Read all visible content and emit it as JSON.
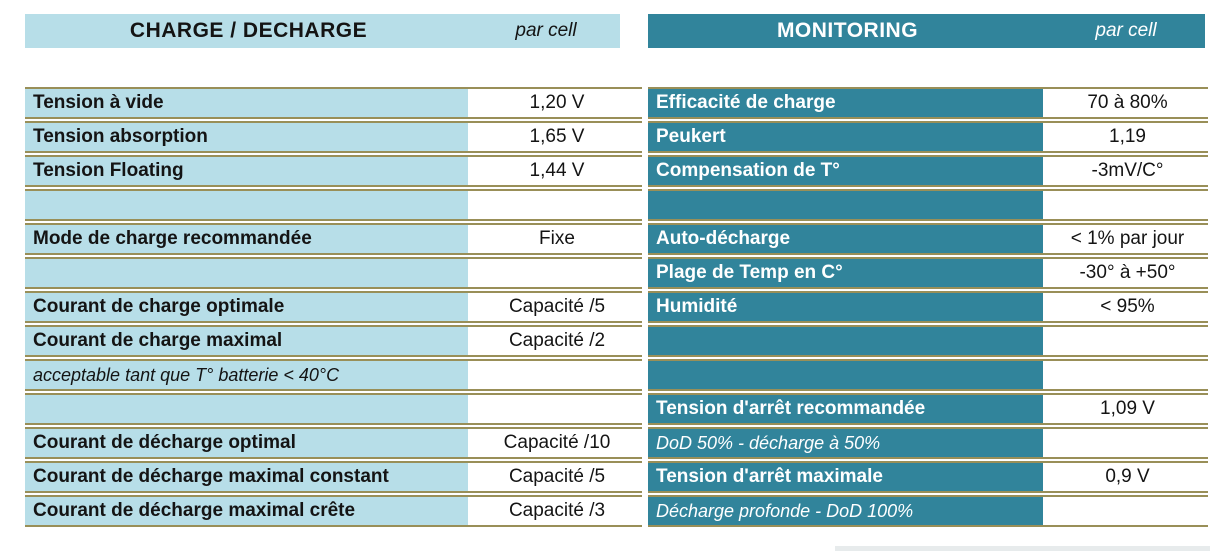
{
  "colors": {
    "light_blue": "#B7DEE8",
    "teal": "#31849B",
    "olive": "#998F58",
    "ink": "#141414",
    "paper": "#FFFFFF"
  },
  "left_table": {
    "header": {
      "title": "CHARGE / DECHARGE",
      "unit": "par cell"
    },
    "rows": [
      {
        "label": "Tension à vide",
        "value": "1,20 V",
        "type": "label"
      },
      {
        "label": "Tension absorption",
        "value": "1,65 V",
        "type": "label"
      },
      {
        "label": "Tension Floating",
        "value": "1,44 V",
        "type": "label"
      },
      {
        "label": "",
        "value": "",
        "type": "empty"
      },
      {
        "label": "Mode de charge recommandée",
        "value": "Fixe",
        "type": "label"
      },
      {
        "label": "",
        "value": "",
        "type": "empty"
      },
      {
        "label": "Courant de charge optimale",
        "value": "Capacité /5",
        "type": "label"
      },
      {
        "label": "Courant de charge maximal",
        "value": "Capacité /2",
        "type": "label"
      },
      {
        "label": "acceptable tant que T° batterie < 40°C",
        "value": "",
        "type": "note"
      },
      {
        "label": "",
        "value": "",
        "type": "empty"
      },
      {
        "label": "Courant de décharge optimal",
        "value": "Capacité /10",
        "type": "label"
      },
      {
        "label": "Courant de décharge maximal constant",
        "value": "Capacité /5",
        "type": "label"
      },
      {
        "label": "Courant de décharge maximal crête",
        "value": "Capacité /3",
        "type": "label"
      }
    ]
  },
  "right_table": {
    "header": {
      "title": "MONITORING",
      "unit": "par cell"
    },
    "rows": [
      {
        "label": "Efficacité de charge",
        "value": "70 à 80%",
        "type": "label"
      },
      {
        "label": "Peukert",
        "value": "1,19",
        "type": "label"
      },
      {
        "label": "Compensation de T°",
        "value": "-3mV/C°",
        "type": "label"
      },
      {
        "label": "",
        "value": "",
        "type": "empty"
      },
      {
        "label": "Auto-décharge",
        "value": "< 1% par jour",
        "type": "label"
      },
      {
        "label": "Plage de Temp en C°",
        "value": "-30° à +50°",
        "type": "label"
      },
      {
        "label": "Humidité",
        "value": "< 95%",
        "type": "label"
      },
      {
        "label": "",
        "value": "",
        "type": "empty"
      },
      {
        "label": "",
        "value": "",
        "type": "empty"
      },
      {
        "label": "Tension d'arrêt recommandée",
        "value": "1,09 V",
        "type": "label"
      },
      {
        "label": "DoD 50% - décharge à 50%",
        "value": "",
        "type": "note"
      },
      {
        "label": "Tension d'arrêt maximale",
        "value": "0,9 V",
        "type": "label"
      },
      {
        "label": "Décharge profonde - DoD 100%",
        "value": "",
        "type": "note"
      }
    ]
  }
}
